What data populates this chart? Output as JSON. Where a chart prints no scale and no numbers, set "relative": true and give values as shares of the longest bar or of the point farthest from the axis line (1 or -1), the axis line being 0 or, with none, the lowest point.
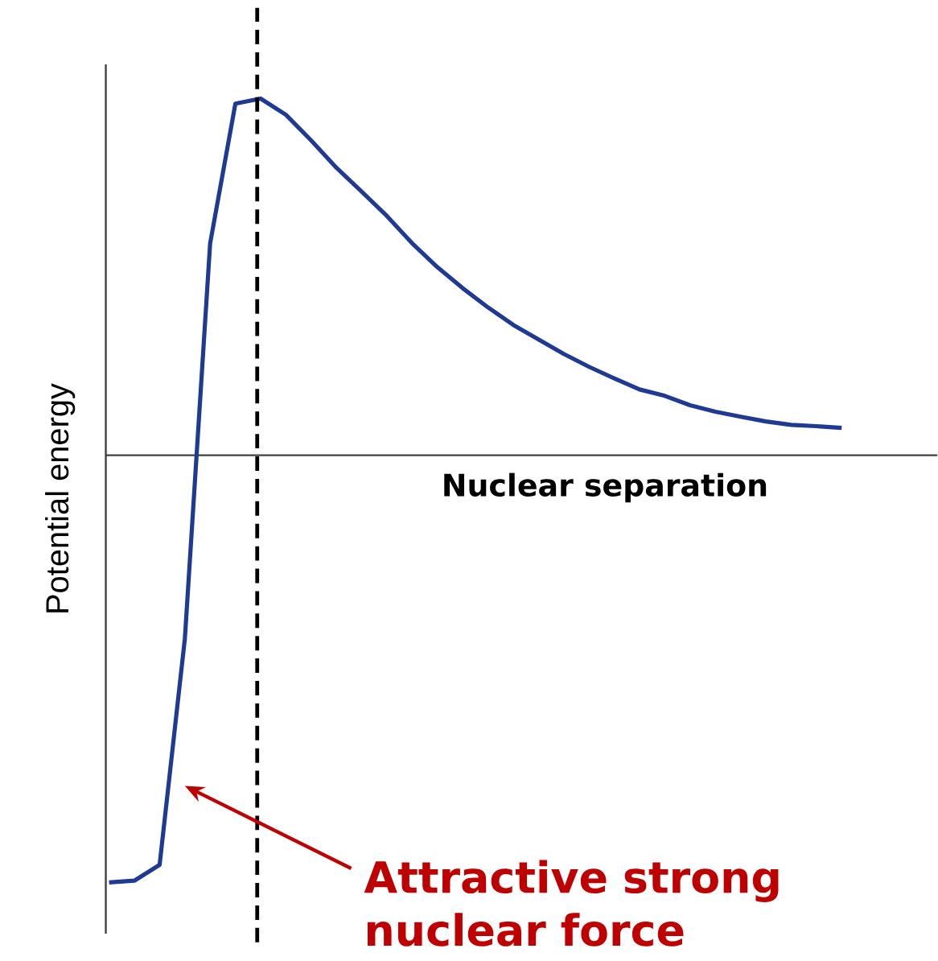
{
  "chart_data": {
    "type": "line",
    "relative": true,
    "xlabel": "Nuclear separation",
    "ylabel": "Potential energy",
    "categories": [
      null,
      null,
      null,
      null,
      null,
      null,
      null,
      null,
      null,
      null,
      null,
      null,
      null,
      null,
      null,
      null,
      null,
      null,
      null,
      null,
      null,
      null,
      null,
      null,
      null,
      null,
      null,
      null,
      null,
      null
    ],
    "series": [
      {
        "color": "#1f3a93",
        "values": [
          -1.0,
          -0.996,
          -0.959,
          -0.429,
          0.496,
          0.823,
          0.835,
          0.797,
          0.737,
          0.673,
          0.617,
          0.56,
          0.496,
          0.44,
          0.391,
          0.346,
          0.305,
          0.271,
          0.237,
          0.207,
          0.18,
          0.154,
          0.139,
          0.117,
          0.102,
          0.09,
          0.079,
          0.071,
          0.068,
          0.064
        ]
      }
    ],
    "annotations": [
      "Attractive strong nuclear force"
    ],
    "marker": "none",
    "line_style": "solid"
  }
}
